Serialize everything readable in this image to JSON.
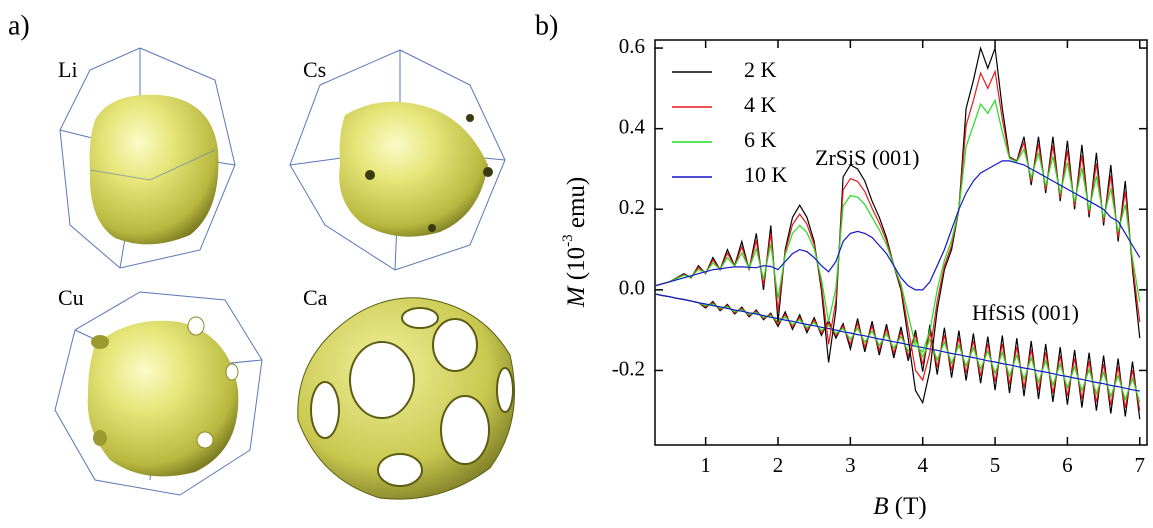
{
  "panels": {
    "a": "a)",
    "b": "b)"
  },
  "fermi_surfaces": [
    "Li",
    "Cs",
    "Cu",
    "Ca"
  ],
  "chart_data": {
    "type": "line",
    "xlabel": {
      "var": "B",
      "unit": "(T)"
    },
    "ylabel": {
      "var": "M",
      "pre": "(10",
      "sup": "-3",
      "post": " emu)"
    },
    "annotations": [
      "ZrSiS (001)",
      "HfSiS (001)"
    ],
    "x": [
      0.3,
      0.4,
      0.5,
      0.6,
      0.7,
      0.8,
      0.9,
      1.0,
      1.1,
      1.2,
      1.3,
      1.4,
      1.5,
      1.6,
      1.7,
      1.8,
      1.9,
      2.0,
      2.1,
      2.2,
      2.3,
      2.4,
      2.5,
      2.6,
      2.7,
      2.8,
      2.9,
      3.0,
      3.1,
      3.2,
      3.3,
      3.4,
      3.5,
      3.6,
      3.7,
      3.8,
      3.9,
      4.0,
      4.1,
      4.2,
      4.3,
      4.4,
      4.5,
      4.6,
      4.7,
      4.8,
      4.9,
      5.0,
      5.1,
      5.2,
      5.3,
      5.4,
      5.5,
      5.6,
      5.7,
      5.8,
      5.9,
      6.0,
      6.1,
      6.2,
      6.3,
      6.4,
      6.5,
      6.6,
      6.7,
      6.8,
      6.9,
      7.0
    ],
    "xlim": [
      0.3,
      7.1
    ],
    "xticks": [
      1,
      2,
      3,
      4,
      5,
      6,
      7
    ],
    "ylim": [
      -0.385,
      0.62
    ],
    "yticks": [
      -0.2,
      {
        "value": 0,
        "label": "0.0"
      },
      0.2,
      0.4,
      0.6
    ],
    "legend": "upper left",
    "series": [
      {
        "name": "2 K",
        "color": "#000000",
        "values": [
          0.01,
          0.015,
          0.02,
          0.03,
          0.04,
          0.03,
          0.06,
          0.04,
          0.08,
          0.05,
          0.1,
          0.06,
          0.12,
          0.05,
          0.14,
          0.0,
          0.16,
          -0.08,
          0.1,
          0.18,
          0.21,
          0.18,
          0.12,
          0.0,
          -0.18,
          -0.05,
          0.28,
          0.31,
          0.3,
          0.27,
          0.22,
          0.18,
          0.13,
          0.06,
          0.0,
          -0.12,
          -0.25,
          -0.28,
          -0.2,
          -0.05,
          0.05,
          0.1,
          0.2,
          0.45,
          0.52,
          0.6,
          0.55,
          0.6,
          0.45,
          0.33,
          0.32,
          0.38,
          0.26,
          0.38,
          0.24,
          0.38,
          0.22,
          0.37,
          0.2,
          0.36,
          0.18,
          0.34,
          0.16,
          0.31,
          0.12,
          0.27,
          0.05,
          -0.12
        ]
      },
      {
        "name": "4 K",
        "color": "#e8191c",
        "values": [
          0.01,
          0.015,
          0.02,
          0.029,
          0.038,
          0.031,
          0.056,
          0.041,
          0.074,
          0.05,
          0.091,
          0.059,
          0.107,
          0.051,
          0.123,
          0.012,
          0.14,
          -0.054,
          0.094,
          0.162,
          0.188,
          0.163,
          0.112,
          0.012,
          -0.135,
          -0.026,
          0.248,
          0.276,
          0.269,
          0.244,
          0.202,
          0.166,
          0.122,
          0.06,
          0.006,
          -0.094,
          -0.2,
          -0.224,
          -0.156,
          -0.028,
          0.06,
          0.11,
          0.2,
          0.408,
          0.47,
          0.538,
          0.5,
          0.542,
          0.424,
          0.328,
          0.319,
          0.366,
          0.268,
          0.362,
          0.248,
          0.358,
          0.228,
          0.346,
          0.208,
          0.334,
          0.188,
          0.314,
          0.168,
          0.284,
          0.13,
          0.244,
          0.062,
          -0.08
        ]
      },
      {
        "name": "6 K",
        "color": "#22dd22",
        "values": [
          0.01,
          0.015,
          0.02,
          0.028,
          0.036,
          0.032,
          0.051,
          0.042,
          0.067,
          0.051,
          0.08,
          0.059,
          0.092,
          0.053,
          0.102,
          0.027,
          0.114,
          -0.022,
          0.087,
          0.14,
          0.16,
          0.142,
          0.102,
          0.027,
          -0.079,
          0.004,
          0.208,
          0.234,
          0.23,
          0.212,
          0.18,
          0.149,
          0.112,
          0.06,
          0.014,
          -0.062,
          -0.138,
          -0.154,
          -0.101,
          0.0,
          0.073,
          0.123,
          0.2,
          0.356,
          0.408,
          0.461,
          0.438,
          0.47,
          0.392,
          0.326,
          0.318,
          0.349,
          0.278,
          0.34,
          0.258,
          0.331,
          0.238,
          0.316,
          0.218,
          0.302,
          0.198,
          0.282,
          0.178,
          0.252,
          0.143,
          0.212,
          0.077,
          -0.03
        ]
      },
      {
        "name": "10 K",
        "color": "#1414c8",
        "values": [
          0.01,
          0.015,
          0.02,
          0.025,
          0.03,
          0.035,
          0.04,
          0.045,
          0.05,
          0.052,
          0.055,
          0.057,
          0.057,
          0.056,
          0.055,
          0.06,
          0.058,
          0.05,
          0.07,
          0.09,
          0.1,
          0.095,
          0.08,
          0.06,
          0.045,
          0.07,
          0.12,
          0.14,
          0.145,
          0.14,
          0.13,
          0.11,
          0.09,
          0.06,
          0.03,
          0.01,
          0.0,
          0.0,
          0.02,
          0.06,
          0.1,
          0.15,
          0.2,
          0.24,
          0.27,
          0.29,
          0.3,
          0.31,
          0.32,
          0.32,
          0.315,
          0.31,
          0.3,
          0.29,
          0.28,
          0.27,
          0.26,
          0.25,
          0.24,
          0.23,
          0.22,
          0.21,
          0.2,
          0.18,
          0.17,
          0.14,
          0.11,
          0.08
        ]
      }
    ],
    "hfsis_series": [
      {
        "color": "#000000",
        "values": [
          -0.01,
          -0.014,
          -0.017,
          -0.021,
          -0.024,
          -0.028,
          -0.032,
          -0.045,
          -0.029,
          -0.052,
          -0.036,
          -0.06,
          -0.043,
          -0.067,
          -0.05,
          -0.074,
          -0.058,
          -0.091,
          -0.055,
          -0.098,
          -0.062,
          -0.106,
          -0.069,
          -0.113,
          -0.076,
          -0.12,
          -0.084,
          -0.147,
          -0.071,
          -0.154,
          -0.078,
          -0.162,
          -0.085,
          -0.169,
          -0.092,
          -0.176,
          -0.1,
          -0.203,
          -0.087,
          -0.21,
          -0.094,
          -0.218,
          -0.101,
          -0.225,
          -0.108,
          -0.232,
          -0.116,
          -0.249,
          -0.113,
          -0.256,
          -0.12,
          -0.264,
          -0.127,
          -0.271,
          -0.134,
          -0.278,
          -0.142,
          -0.285,
          -0.149,
          -0.292,
          -0.156,
          -0.3,
          -0.163,
          -0.307,
          -0.17,
          -0.314,
          -0.178,
          -0.321
        ]
      },
      {
        "color": "#e8191c",
        "values": [
          -0.01,
          -0.014,
          -0.017,
          -0.021,
          -0.024,
          -0.028,
          -0.032,
          -0.042,
          -0.032,
          -0.049,
          -0.039,
          -0.057,
          -0.046,
          -0.064,
          -0.053,
          -0.071,
          -0.061,
          -0.085,
          -0.061,
          -0.092,
          -0.068,
          -0.1,
          -0.075,
          -0.107,
          -0.082,
          -0.114,
          -0.09,
          -0.135,
          -0.083,
          -0.142,
          -0.09,
          -0.15,
          -0.097,
          -0.157,
          -0.104,
          -0.164,
          -0.112,
          -0.185,
          -0.105,
          -0.192,
          -0.112,
          -0.2,
          -0.119,
          -0.207,
          -0.126,
          -0.214,
          -0.134,
          -0.228,
          -0.134,
          -0.235,
          -0.141,
          -0.243,
          -0.148,
          -0.25,
          -0.155,
          -0.257,
          -0.163,
          -0.264,
          -0.17,
          -0.271,
          -0.177,
          -0.279,
          -0.184,
          -0.286,
          -0.191,
          -0.293,
          -0.199,
          -0.3
        ]
      },
      {
        "color": "#22dd22",
        "values": [
          -0.01,
          -0.014,
          -0.017,
          -0.021,
          -0.024,
          -0.028,
          -0.032,
          -0.039,
          -0.035,
          -0.046,
          -0.042,
          -0.054,
          -0.049,
          -0.061,
          -0.056,
          -0.068,
          -0.064,
          -0.079,
          -0.067,
          -0.086,
          -0.074,
          -0.094,
          -0.081,
          -0.101,
          -0.088,
          -0.108,
          -0.096,
          -0.123,
          -0.095,
          -0.13,
          -0.102,
          -0.138,
          -0.109,
          -0.145,
          -0.116,
          -0.152,
          -0.124,
          -0.167,
          -0.123,
          -0.174,
          -0.13,
          -0.182,
          -0.137,
          -0.189,
          -0.144,
          -0.196,
          -0.152,
          -0.207,
          -0.155,
          -0.214,
          -0.162,
          -0.222,
          -0.169,
          -0.229,
          -0.176,
          -0.236,
          -0.184,
          -0.243,
          -0.191,
          -0.25,
          -0.198,
          -0.258,
          -0.205,
          -0.265,
          -0.212,
          -0.272,
          -0.22,
          -0.279
        ]
      },
      {
        "color": "#1414c8",
        "values": [
          -0.01,
          -0.014,
          -0.017,
          -0.021,
          -0.024,
          -0.028,
          -0.032,
          -0.035,
          -0.039,
          -0.042,
          -0.046,
          -0.05,
          -0.053,
          -0.057,
          -0.06,
          -0.064,
          -0.068,
          -0.071,
          -0.075,
          -0.078,
          -0.082,
          -0.086,
          -0.089,
          -0.093,
          -0.096,
          -0.1,
          -0.104,
          -0.107,
          -0.111,
          -0.114,
          -0.118,
          -0.122,
          -0.125,
          -0.129,
          -0.132,
          -0.136,
          -0.14,
          -0.143,
          -0.147,
          -0.15,
          -0.154,
          -0.158,
          -0.161,
          -0.165,
          -0.168,
          -0.172,
          -0.176,
          -0.179,
          -0.183,
          -0.186,
          -0.19,
          -0.194,
          -0.197,
          -0.201,
          -0.204,
          -0.208,
          -0.212,
          -0.215,
          -0.219,
          -0.222,
          -0.226,
          -0.23,
          -0.233,
          -0.237,
          -0.24,
          -0.244,
          -0.248,
          -0.251
        ]
      }
    ]
  }
}
